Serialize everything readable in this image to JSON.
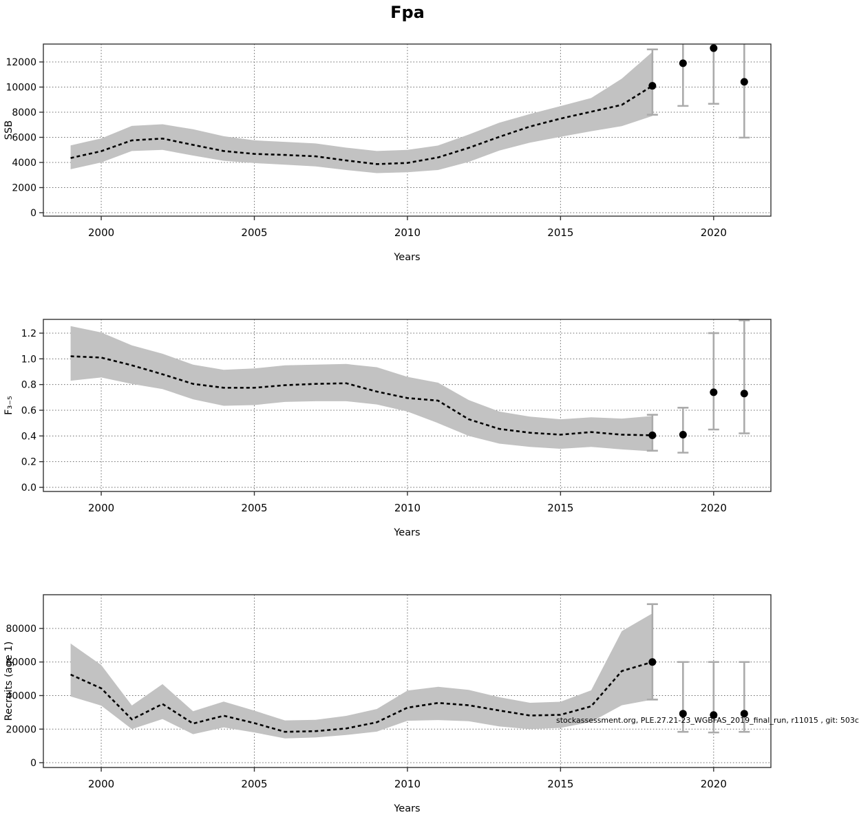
{
  "title": "Fpa",
  "watermark": "stockassessment.org, PLE.27.21-23_WGBFAS_2019_final_run, r11015 , git: 503c",
  "colors": {
    "band": "#c2c2c2",
    "line": "#000000",
    "errorbar": "#ababab",
    "point": "#000000",
    "grid": "#666666",
    "border": "#333333",
    "tick": "#333333",
    "text": "#000000"
  },
  "chart_data": [
    {
      "type": "area",
      "name": "ssb",
      "title": "",
      "xlabel": "Years",
      "ylabel": "SSB",
      "grid": true,
      "xlim": [
        1998.11,
        2021.87
      ],
      "ylim": [
        -274,
        13425
      ],
      "xticks": [
        2000,
        2005,
        2010,
        2015,
        2020
      ],
      "yticks": [
        0,
        2000,
        4000,
        6000,
        8000,
        10000,
        12000
      ],
      "ytick_labels": [
        "0",
        "2000",
        "4000",
        "6000",
        "8000",
        "10000",
        "12000"
      ],
      "years": [
        1999,
        2000,
        2001,
        2002,
        2003,
        2004,
        2005,
        2006,
        2007,
        2008,
        2009,
        2010,
        2011,
        2012,
        2013,
        2014,
        2015,
        2016,
        2017,
        2018
      ],
      "mean": [
        4350,
        4900,
        5760,
        5900,
        5400,
        4910,
        4680,
        4600,
        4490,
        4160,
        3870,
        3960,
        4400,
        5160,
        6040,
        6860,
        7490,
        8040,
        8580,
        10100
      ],
      "lower": [
        3460,
        4000,
        4910,
        5000,
        4550,
        4130,
        3950,
        3820,
        3690,
        3400,
        3150,
        3220,
        3400,
        4040,
        4950,
        5580,
        6040,
        6490,
        6890,
        7700
      ],
      "upper": [
        5360,
        5910,
        6910,
        7040,
        6640,
        6090,
        5760,
        5640,
        5510,
        5180,
        4910,
        5000,
        5350,
        6220,
        7160,
        7860,
        8490,
        9130,
        10670,
        12800
      ],
      "terminal": {
        "year": 2018,
        "value": 10100,
        "lo": 7800,
        "hi": 13000
      },
      "forecast": [
        {
          "year": 2019,
          "value": 11900,
          "lo": 8500,
          "hi": null
        },
        {
          "year": 2020,
          "value": 13100,
          "lo": 8670,
          "hi": null
        },
        {
          "year": 2021,
          "value": 10420,
          "lo": 5980,
          "hi": null
        }
      ]
    },
    {
      "type": "area",
      "name": "fbar",
      "title": "",
      "xlabel": "Years",
      "ylabel": "F₃₋₅",
      "grid": true,
      "xlim": [
        1998.11,
        2021.87
      ],
      "ylim": [
        -0.032,
        1.307
      ],
      "xticks": [
        2000,
        2005,
        2010,
        2015,
        2020
      ],
      "yticks": [
        0.0,
        0.2,
        0.4,
        0.6,
        0.8,
        1.0,
        1.2
      ],
      "ytick_labels": [
        "0.0",
        "0.2",
        "0.4",
        "0.6",
        "0.8",
        "1.0",
        "1.2"
      ],
      "years": [
        1999,
        2000,
        2001,
        2002,
        2003,
        2004,
        2005,
        2006,
        2007,
        2008,
        2009,
        2010,
        2011,
        2012,
        2013,
        2014,
        2015,
        2016,
        2017,
        2018
      ],
      "mean": [
        1.02,
        1.01,
        0.95,
        0.88,
        0.805,
        0.775,
        0.775,
        0.795,
        0.805,
        0.81,
        0.745,
        0.695,
        0.675,
        0.53,
        0.455,
        0.425,
        0.41,
        0.43,
        0.41,
        0.405
      ],
      "lower": [
        0.83,
        0.855,
        0.805,
        0.765,
        0.685,
        0.635,
        0.64,
        0.665,
        0.67,
        0.67,
        0.645,
        0.59,
        0.5,
        0.4,
        0.34,
        0.315,
        0.3,
        0.315,
        0.295,
        0.28
      ],
      "upper": [
        1.255,
        1.205,
        1.105,
        1.04,
        0.955,
        0.915,
        0.925,
        0.95,
        0.955,
        0.96,
        0.935,
        0.86,
        0.815,
        0.68,
        0.59,
        0.55,
        0.53,
        0.545,
        0.535,
        0.555
      ],
      "terminal": {
        "year": 2018,
        "value": 0.405,
        "lo": 0.285,
        "hi": 0.565
      },
      "forecast": [
        {
          "year": 2019,
          "value": 0.41,
          "lo": 0.27,
          "hi": 0.62
        },
        {
          "year": 2020,
          "value": 0.74,
          "lo": 0.45,
          "hi": 1.2
        },
        {
          "year": 2021,
          "value": 0.73,
          "lo": 0.42,
          "hi": 1.3
        }
      ]
    },
    {
      "type": "area",
      "name": "recruits",
      "title": "",
      "xlabel": "Years",
      "ylabel": "Recruits (age 1)",
      "grid": true,
      "xlim": [
        1998.11,
        2021.87
      ],
      "ylim": [
        -2870,
        100100
      ],
      "xticks": [
        2000,
        2005,
        2010,
        2015,
        2020
      ],
      "yticks": [
        0,
        20000,
        40000,
        60000,
        80000
      ],
      "ytick_labels": [
        "0",
        "20000",
        "40000",
        "60000",
        "80000"
      ],
      "years": [
        1999,
        2000,
        2001,
        2002,
        2003,
        2004,
        2005,
        2006,
        2007,
        2008,
        2009,
        2010,
        2011,
        2012,
        2013,
        2014,
        2015,
        2016,
        2017,
        2018
      ],
      "mean": [
        52500,
        44300,
        25800,
        35000,
        23300,
        28000,
        23600,
        18400,
        18800,
        20400,
        24100,
        32800,
        35600,
        34200,
        31100,
        28100,
        28500,
        33600,
        54600,
        60000
      ],
      "lower": [
        39500,
        34000,
        20000,
        26000,
        17000,
        21000,
        18000,
        14500,
        15000,
        16500,
        18500,
        25000,
        25400,
        24700,
        21600,
        20000,
        20700,
        24300,
        34200,
        37600
      ],
      "upper": [
        71000,
        58200,
        34100,
        46800,
        30700,
        36400,
        31000,
        25200,
        25500,
        27900,
        32000,
        43000,
        45200,
        43400,
        39000,
        35700,
        36300,
        43100,
        78400,
        89000
      ],
      "terminal": {
        "year": 2018,
        "value": 60000,
        "lo": 37600,
        "hi": 94500
      },
      "forecast": [
        {
          "year": 2019,
          "value": 29200,
          "lo": 18400,
          "hi": 60000
        },
        {
          "year": 2020,
          "value": 28400,
          "lo": 18000,
          "hi": 60000
        },
        {
          "year": 2021,
          "value": 29200,
          "lo": 18400,
          "hi": 60000
        }
      ]
    }
  ]
}
